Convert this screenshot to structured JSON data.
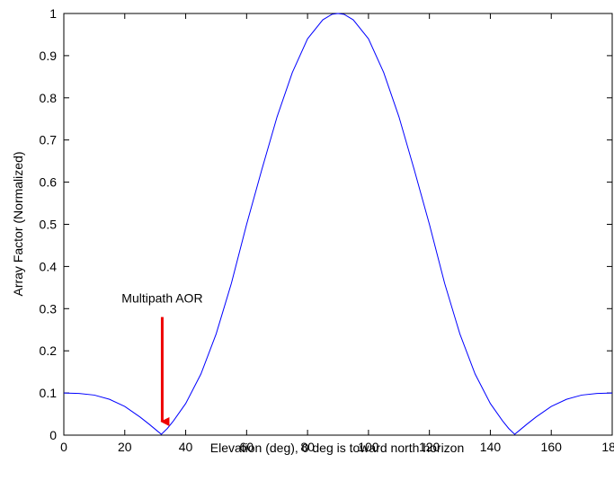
{
  "chart_data": {
    "type": "line",
    "title": "",
    "xlabel": "Elevation (deg), 0 deg is toward north horizon",
    "ylabel": "Array Factor (Normalized)",
    "xlim": [
      0,
      180
    ],
    "ylim": [
      0,
      1
    ],
    "grid": false,
    "xticks": [
      0,
      20,
      40,
      60,
      80,
      100,
      120,
      140,
      160,
      180
    ],
    "yticks": [
      0,
      0.1,
      0.2,
      0.3,
      0.4,
      0.5,
      0.6,
      0.7,
      0.8,
      0.9,
      1
    ],
    "xtick_labels": [
      "0",
      "20",
      "40",
      "60",
      "80",
      "100",
      "120",
      "140",
      "160",
      "180"
    ],
    "ytick_labels": [
      "0",
      "0.1",
      "0.2",
      "0.3",
      "0.4",
      "0.5",
      "0.6",
      "0.7",
      "0.8",
      "0.9",
      "1"
    ],
    "series": [
      {
        "color": "#0000ff",
        "x": [
          0,
          5,
          10,
          15,
          20,
          25,
          28,
          30,
          32,
          34,
          36,
          40,
          45,
          50,
          55,
          60,
          65,
          70,
          75,
          80,
          85,
          88,
          90,
          92,
          95,
          100,
          105,
          110,
          115,
          120,
          125,
          130,
          135,
          140,
          144,
          146,
          148,
          150,
          152,
          155,
          160,
          165,
          170,
          175,
          180
        ],
        "y": [
          0.1,
          0.099,
          0.095,
          0.085,
          0.068,
          0.043,
          0.026,
          0.014,
          0.002,
          0.016,
          0.034,
          0.075,
          0.145,
          0.24,
          0.36,
          0.5,
          0.63,
          0.755,
          0.86,
          0.94,
          0.985,
          0.998,
          1.0,
          0.998,
          0.985,
          0.94,
          0.86,
          0.755,
          0.63,
          0.5,
          0.36,
          0.24,
          0.145,
          0.075,
          0.034,
          0.016,
          0.002,
          0.014,
          0.026,
          0.043,
          0.068,
          0.085,
          0.095,
          0.099,
          0.1
        ]
      }
    ],
    "annotations": [
      {
        "text": "Multipath AOR",
        "arrow_color": "#ee0000",
        "arrow_x": 32,
        "arrow_from_y": 0.28,
        "arrow_to_y": 0.015
      }
    ]
  }
}
